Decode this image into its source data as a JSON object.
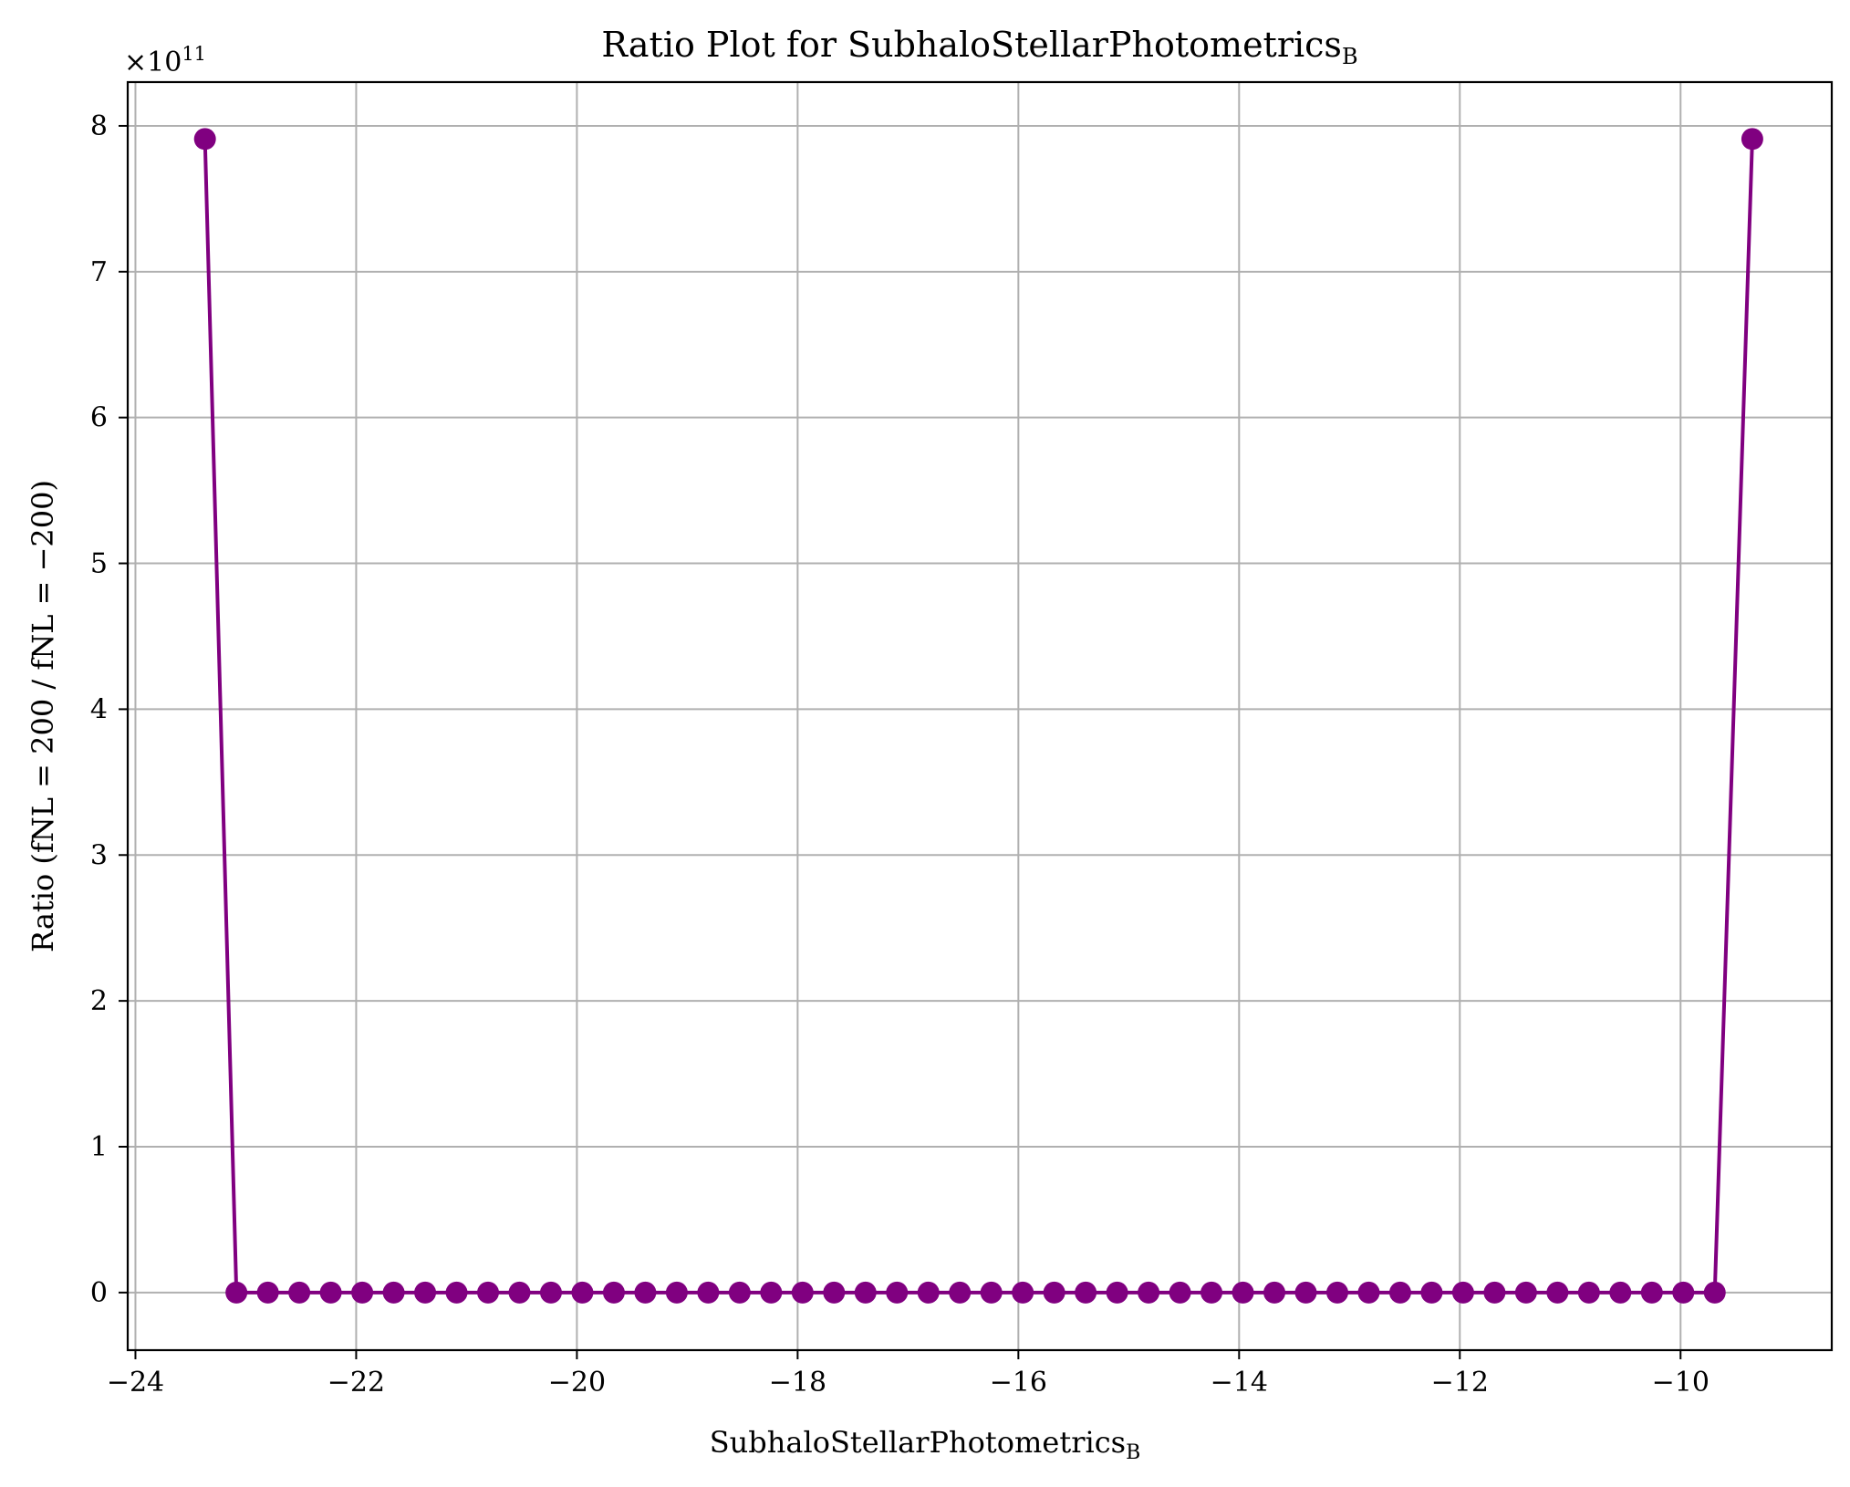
{
  "chart_data": {
    "type": "line",
    "title": "Ratio Plot for SubhaloStellarPhotometrics",
    "title_subscript": "B",
    "xlabel": "SubhaloStellarPhotometrics",
    "xlabel_subscript": "B",
    "ylabel": "Ratio (fNL = 200 / fNL = −200)",
    "y_offset_text": "×10",
    "y_offset_exponent": "11",
    "xlim": [
      -24.07,
      -8.63
    ],
    "ylim": [
      -0.395,
      8.3
    ],
    "y_scale_note": "values in units of 1e11",
    "xticks": [
      -24,
      -22,
      -20,
      -18,
      -16,
      -14,
      -12,
      -10
    ],
    "xtick_labels": [
      "−24",
      "−22",
      "−20",
      "−18",
      "−16",
      "−14",
      "−12",
      "−10"
    ],
    "yticks": [
      0,
      1,
      2,
      3,
      4,
      5,
      6,
      7,
      8
    ],
    "ytick_labels": [
      "0",
      "1",
      "2",
      "3",
      "4",
      "5",
      "6",
      "7",
      "8"
    ],
    "grid": true,
    "color": "#800080",
    "series": [
      {
        "x": [
          -23.37,
          -23.085,
          -22.8,
          -22.515,
          -22.23,
          -21.945,
          -21.66,
          -21.375,
          -21.09,
          -20.805,
          -20.52,
          -20.235,
          -19.95,
          -19.665,
          -19.38,
          -19.095,
          -18.81,
          -18.525,
          -18.24,
          -17.955,
          -17.67,
          -17.385,
          -17.1,
          -16.815,
          -16.53,
          -16.245,
          -15.96,
          -15.675,
          -15.39,
          -15.105,
          -14.82,
          -14.535,
          -14.25,
          -13.965,
          -13.68,
          -13.395,
          -13.11,
          -12.825,
          -12.54,
          -12.255,
          -11.97,
          -11.685,
          -11.4,
          -11.115,
          -10.83,
          -10.545,
          -10.26,
          -9.975,
          -9.69,
          -9.35
        ],
        "y": [
          7.91,
          0,
          0,
          0,
          0,
          0,
          0,
          0,
          0,
          0,
          0,
          0,
          0,
          0,
          0,
          0,
          0,
          0,
          0,
          0,
          0,
          0,
          0,
          0,
          0,
          0,
          0,
          0,
          0,
          0,
          0,
          0,
          0,
          0,
          0,
          0,
          0,
          0,
          0,
          0,
          0,
          0,
          0,
          0,
          0,
          0,
          0,
          0,
          0,
          7.91
        ]
      }
    ]
  }
}
